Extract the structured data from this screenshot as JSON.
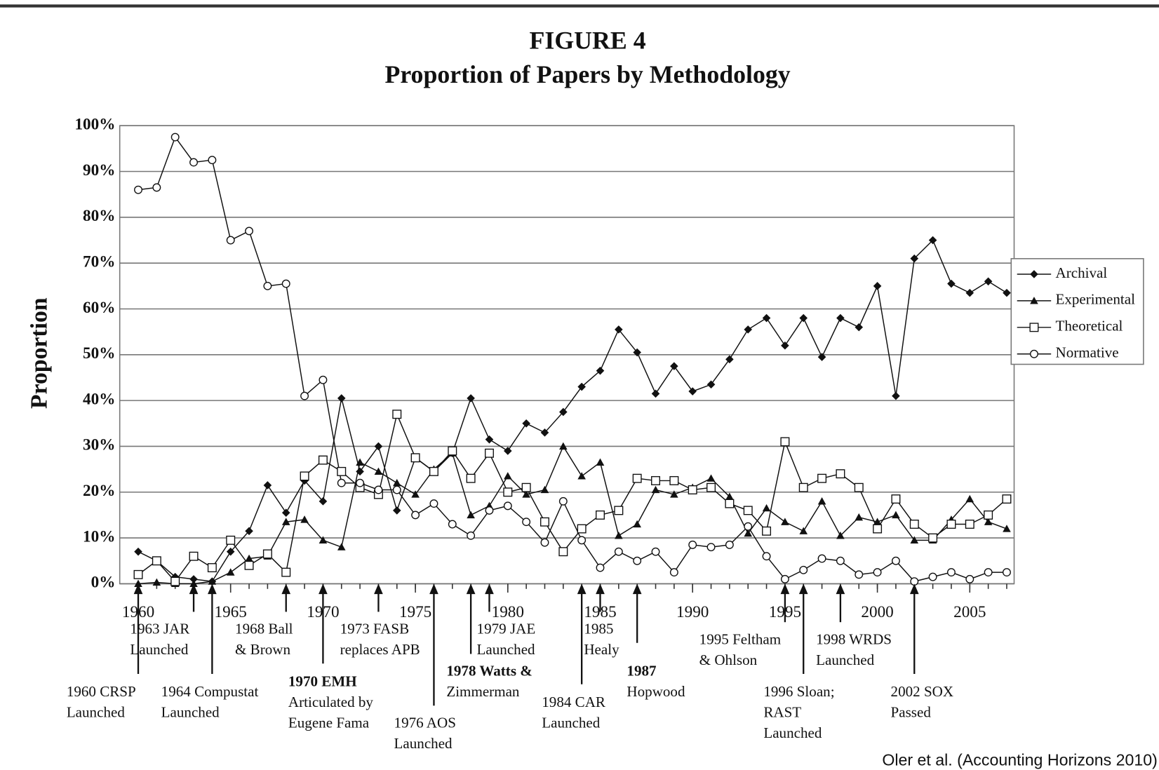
{
  "chart_data": {
    "type": "line",
    "title": "FIGURE 4",
    "subtitle": "Proportion of Papers by Methodology",
    "y_label": "Proportion",
    "source": "Oler et al. (Accounting Horizons 2010)",
    "x": [
      1960,
      1961,
      1962,
      1963,
      1964,
      1965,
      1966,
      1967,
      1968,
      1969,
      1970,
      1971,
      1972,
      1973,
      1974,
      1975,
      1976,
      1977,
      1978,
      1979,
      1980,
      1981,
      1982,
      1983,
      1984,
      1985,
      1986,
      1987,
      1988,
      1989,
      1990,
      1991,
      1992,
      1993,
      1994,
      1995,
      1996,
      1997,
      1998,
      1999,
      2000,
      2001,
      2002,
      2003,
      2004,
      2005,
      2006,
      2007
    ],
    "xlim": [
      1959,
      2007.4
    ],
    "xticks": [
      1960,
      1965,
      1970,
      1975,
      1980,
      1985,
      1990,
      1995,
      2000,
      2005
    ],
    "ylim": [
      0,
      100
    ],
    "yticks": [
      {
        "value": 0,
        "label": "0%"
      },
      {
        "value": 10,
        "label": "10%"
      },
      {
        "value": 20,
        "label": "20%"
      },
      {
        "value": 30,
        "label": "30%"
      },
      {
        "value": 40,
        "label": "40%"
      },
      {
        "value": 50,
        "label": "50%"
      },
      {
        "value": 60,
        "label": "60%"
      },
      {
        "value": 70,
        "label": "70%"
      },
      {
        "value": 80,
        "label": "80%"
      },
      {
        "value": 90,
        "label": "90%"
      },
      {
        "value": 100,
        "label": "100%"
      }
    ],
    "grid": true,
    "legend": "right",
    "series": [
      {
        "name": "Archival",
        "color": "#111111",
        "marker": "diamond",
        "values": [
          7,
          5,
          1.5,
          1,
          0.5,
          7,
          11.5,
          21.5,
          15.5,
          22.5,
          18,
          40.5,
          24.5,
          30,
          16,
          27.5,
          24.5,
          28.5,
          40.5,
          31.5,
          29,
          35,
          33,
          37.5,
          43,
          46.5,
          55.5,
          50.5,
          41.5,
          47.5,
          42,
          43.5,
          49,
          55.5,
          58,
          52,
          58,
          49.5,
          58,
          56,
          65,
          41,
          71,
          75,
          65.5,
          63.5,
          66,
          63.5
        ]
      },
      {
        "name": "Experimental",
        "color": "#111111",
        "marker": "triangle",
        "values": [
          0,
          0.3,
          0,
          0,
          0.5,
          2.5,
          5.5,
          6,
          13.5,
          14,
          9.5,
          8,
          26.5,
          24.5,
          22,
          19.5,
          25,
          28.5,
          15,
          17,
          23.5,
          19.5,
          20.5,
          30,
          23.5,
          26.5,
          10.5,
          13,
          20.5,
          19.5,
          21,
          23,
          19,
          11,
          16.5,
          13.5,
          11.5,
          18,
          10.5,
          14.5,
          13.5,
          15,
          9.5,
          9.5,
          14,
          18.5,
          13.5,
          12
        ]
      },
      {
        "name": "Theoretical",
        "color": "#111111",
        "marker": "square",
        "values": [
          2,
          5,
          0.5,
          6,
          3.5,
          9.5,
          4,
          6.5,
          2.5,
          23.5,
          27,
          24.5,
          21,
          19.5,
          37,
          27.5,
          24.5,
          29,
          23,
          28.5,
          20,
          21,
          13.5,
          7,
          12,
          15,
          16,
          23,
          22.5,
          22.5,
          20.5,
          21,
          17.5,
          16,
          11.5,
          31,
          21,
          23,
          24,
          21,
          12,
          18.5,
          13,
          10,
          13,
          13,
          15,
          18.5
        ]
      },
      {
        "name": "Normative",
        "color": "#111111",
        "marker": "circle",
        "values": [
          86,
          86.5,
          97.5,
          92,
          92.5,
          75,
          77,
          65,
          65.5,
          41,
          44.5,
          22,
          22,
          20.5,
          20.5,
          15,
          17.5,
          13,
          10.5,
          16,
          17,
          13.5,
          9,
          18,
          9.5,
          3.5,
          7,
          5,
          7,
          2.5,
          8.5,
          8,
          8.5,
          12.5,
          6,
          1,
          3,
          5.5,
          5,
          2,
          2.5,
          5,
          0.5,
          1.5,
          2.5,
          1,
          2.5,
          2.5
        ]
      }
    ],
    "annotations": [
      {
        "x": 1960,
        "lines": [
          "1960 CRSP",
          "Launched"
        ]
      },
      {
        "x": 1963,
        "lines": [
          "1963 JAR",
          "Launched"
        ]
      },
      {
        "x": 1964,
        "lines": [
          "1964 Compustat",
          "Launched"
        ]
      },
      {
        "x": 1968,
        "lines": [
          "1968 Ball",
          "& Brown"
        ]
      },
      {
        "x": 1970,
        "lines": [
          "1970 EMH",
          "Articulated by",
          "Eugene Fama"
        ],
        "bold": [
          0
        ]
      },
      {
        "x": 1973,
        "lines": [
          "1973 FASB",
          "replaces APB"
        ]
      },
      {
        "x": 1976,
        "lines": [
          "1976 AOS",
          "Launched"
        ]
      },
      {
        "x": 1978,
        "lines": [
          "1978 Watts &",
          "Zimmerman"
        ],
        "bold": [
          0
        ]
      },
      {
        "x": 1979,
        "lines": [
          "1979 JAE",
          "Launched"
        ]
      },
      {
        "x": 1984,
        "lines": [
          "1984 CAR",
          "Launched"
        ]
      },
      {
        "x": 1985,
        "lines": [
          "1985",
          "Healy"
        ]
      },
      {
        "x": 1987,
        "lines": [
          "1987",
          "Hopwood"
        ],
        "bold": [
          0
        ]
      },
      {
        "x": 1995,
        "lines": [
          "1995 Feltham",
          "& Ohlson"
        ]
      },
      {
        "x": 1996,
        "lines": [
          "1996 Sloan;",
          "RAST",
          "Launched"
        ]
      },
      {
        "x": 1998,
        "lines": [
          "1998 WRDS",
          "Launched"
        ]
      },
      {
        "x": 2002,
        "lines": [
          "2002 SOX",
          "Passed"
        ]
      }
    ]
  }
}
